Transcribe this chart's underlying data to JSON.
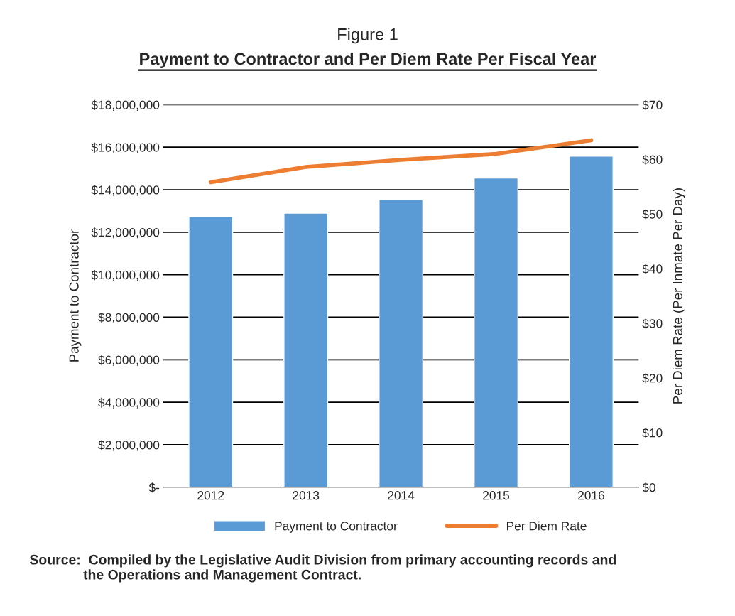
{
  "chart_data": {
    "type": "bar",
    "title": "Figure 1",
    "subtitle": "Payment to Contractor and Per Diem Rate Per Fiscal Year",
    "categories": [
      "2012",
      "2013",
      "2014",
      "2015",
      "2016"
    ],
    "series": [
      {
        "name": "Payment to Contractor",
        "color": "#5b9bd5",
        "values": [
          12740000,
          12900000,
          13540000,
          14550000,
          15580000
        ]
      },
      {
        "name": "Per Diem Rate",
        "type": "line",
        "axis": "y2",
        "color": "#ed7d31",
        "values": [
          55.8,
          58.6,
          59.9,
          61.0,
          63.5
        ]
      }
    ],
    "ylabel": "Payment to Contractor",
    "y2label": "Per Diem Rate (Per Inmate Per Day)",
    "ylim": [
      0,
      18000000
    ],
    "yticks": [
      {
        "value": 0,
        "label": "$-"
      },
      {
        "value": 2000000,
        "label": "$2,000,000"
      },
      {
        "value": 4000000,
        "label": "$4,000,000"
      },
      {
        "value": 6000000,
        "label": "$6,000,000"
      },
      {
        "value": 8000000,
        "label": "$8,000,000"
      },
      {
        "value": 10000000,
        "label": "$10,000,000"
      },
      {
        "value": 12000000,
        "label": "$12,000,000"
      },
      {
        "value": 14000000,
        "label": "$14,000,000"
      },
      {
        "value": 16000000,
        "label": "$16,000,000"
      },
      {
        "value": 18000000,
        "label": "$18,000,000"
      }
    ],
    "y2lim": [
      0,
      70
    ],
    "y2ticks": [
      {
        "value": 0,
        "label": "$0"
      },
      {
        "value": 10,
        "label": "$10"
      },
      {
        "value": 20,
        "label": "$20"
      },
      {
        "value": 30,
        "label": "$30"
      },
      {
        "value": 40,
        "label": "$40"
      },
      {
        "value": 50,
        "label": "$50"
      },
      {
        "value": 60,
        "label": "$60"
      },
      {
        "value": 70,
        "label": "$70"
      }
    ],
    "grid": "y",
    "legend": "bottom",
    "marker": "none",
    "line_style": "solid",
    "annotations": [
      "Source:  Compiled by the Legislative Audit Division from primary accounting records and\n              the Operations and Management Contract."
    ]
  }
}
